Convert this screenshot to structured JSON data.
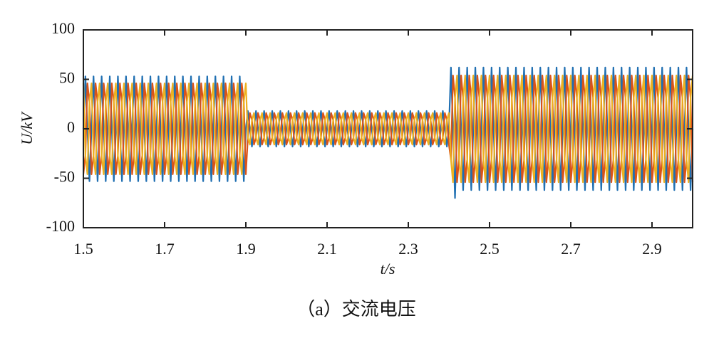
{
  "chart_data": {
    "type": "line",
    "ylabel": "U/kV",
    "xlabel": "t/s",
    "caption": "（a）交流电压",
    "xlim": [
      1.5,
      3.0
    ],
    "xticks": [
      1.5,
      1.7,
      1.9,
      2.1,
      2.3,
      2.5,
      2.7,
      2.9
    ],
    "ylim": [
      -100,
      100
    ],
    "yticks": [
      -100,
      -50,
      0,
      50,
      100
    ],
    "x": [
      1.5,
      1.505,
      1.51,
      1.515,
      1.52,
      1.525,
      1.53,
      1.535,
      1.54,
      1.545,
      1.55,
      1.555,
      1.56,
      1.565,
      1.57,
      1.575,
      1.58,
      1.585,
      1.59,
      1.595,
      1.6,
      1.605,
      1.61,
      1.615,
      1.62,
      1.625,
      1.63,
      1.635,
      1.64,
      1.645,
      1.65,
      1.655,
      1.66,
      1.665,
      1.67,
      1.675,
      1.68,
      1.685,
      1.69,
      1.695,
      1.7,
      1.705,
      1.71,
      1.715,
      1.72,
      1.725,
      1.73,
      1.735,
      1.74,
      1.745,
      1.75,
      1.755,
      1.76,
      1.765,
      1.77,
      1.775,
      1.78,
      1.785,
      1.79,
      1.795,
      1.8,
      1.805,
      1.81,
      1.815,
      1.82,
      1.825,
      1.83,
      1.835,
      1.84,
      1.845,
      1.85,
      1.855,
      1.86,
      1.865,
      1.87,
      1.875,
      1.88,
      1.885,
      1.89,
      1.895,
      1.9,
      1.905,
      1.91,
      1.915,
      1.92,
      1.925,
      1.93,
      1.935,
      1.94,
      1.945,
      1.95,
      1.955,
      1.96,
      1.965,
      1.97,
      1.975,
      1.98,
      1.985,
      1.99,
      1.995,
      2.0,
      2.005,
      2.01,
      2.015,
      2.02,
      2.025,
      2.03,
      2.035,
      2.04,
      2.045,
      2.05,
      2.055,
      2.06,
      2.065,
      2.07,
      2.075,
      2.08,
      2.085,
      2.09,
      2.095,
      2.1,
      2.105,
      2.11,
      2.115,
      2.12,
      2.125,
      2.13,
      2.135,
      2.14,
      2.145,
      2.15,
      2.155,
      2.16,
      2.165,
      2.17,
      2.175,
      2.18,
      2.185,
      2.19,
      2.195,
      2.2,
      2.205,
      2.21,
      2.215,
      2.22,
      2.225,
      2.23,
      2.235,
      2.24,
      2.245,
      2.25,
      2.255,
      2.26,
      2.265,
      2.27,
      2.275,
      2.28,
      2.285,
      2.29,
      2.295,
      2.3,
      2.305,
      2.31,
      2.315,
      2.32,
      2.325,
      2.33,
      2.335,
      2.34,
      2.345,
      2.35,
      2.355,
      2.36,
      2.365,
      2.37,
      2.375,
      2.38,
      2.385,
      2.39,
      2.395,
      2.4,
      2.405,
      2.41,
      2.415,
      2.42,
      2.425,
      2.43,
      2.435,
      2.44,
      2.445,
      2.45,
      2.455,
      2.46,
      2.465,
      2.47,
      2.475,
      2.48,
      2.485,
      2.49,
      2.495,
      2.5,
      2.505,
      2.51,
      2.515,
      2.52,
      2.525,
      2.53,
      2.535,
      2.54,
      2.545,
      2.55,
      2.555,
      2.56,
      2.565,
      2.57,
      2.575,
      2.58,
      2.585,
      2.59,
      2.595,
      2.6,
      2.605,
      2.61,
      2.615,
      2.62,
      2.625,
      2.63,
      2.635,
      2.64,
      2.645,
      2.65,
      2.655,
      2.66,
      2.665,
      2.67,
      2.675,
      2.68,
      2.685,
      2.69,
      2.695,
      2.7,
      2.705,
      2.71,
      2.715,
      2.72,
      2.725,
      2.73,
      2.735,
      2.74,
      2.745,
      2.75,
      2.755,
      2.76,
      2.765,
      2.77,
      2.775,
      2.78,
      2.785,
      2.79,
      2.795,
      2.8,
      2.805,
      2.81,
      2.815,
      2.82,
      2.825,
      2.83,
      2.835,
      2.84,
      2.845,
      2.85,
      2.855,
      2.86,
      2.865,
      2.87,
      2.875,
      2.88,
      2.885,
      2.89,
      2.895,
      2.9,
      2.905,
      2.91,
      2.915,
      2.92,
      2.925,
      2.93,
      2.935,
      2.94,
      2.945,
      2.95,
      2.955,
      2.96,
      2.965,
      2.97,
      2.975,
      2.98,
      2.985,
      2.99,
      2.995,
      3.0
    ],
    "series": [
      {
        "color": "#1f6fb2",
        "values": [
          0,
          53,
          0,
          -53,
          0,
          53,
          0,
          -53,
          0,
          53,
          0,
          -53,
          0,
          53,
          0,
          -53,
          0,
          53,
          0,
          -53,
          0,
          53,
          0,
          -53,
          0,
          53,
          0,
          -53,
          0,
          53,
          0,
          -53,
          0,
          53,
          0,
          -53,
          0,
          53,
          0,
          -53,
          0,
          53,
          0,
          -53,
          0,
          53,
          0,
          -53,
          0,
          53,
          0,
          -53,
          0,
          53,
          0,
          -53,
          0,
          53,
          0,
          -53,
          0,
          53,
          0,
          -53,
          0,
          53,
          0,
          -53,
          0,
          53,
          0,
          -53,
          0,
          53,
          0,
          -53,
          0,
          53,
          0,
          -53,
          0,
          18,
          0,
          -18,
          0,
          18,
          0,
          -18,
          0,
          18,
          0,
          -18,
          0,
          18,
          0,
          -18,
          0,
          18,
          0,
          -18,
          0,
          18,
          0,
          -18,
          0,
          18,
          0,
          -18,
          0,
          18,
          0,
          -18,
          0,
          18,
          0,
          -18,
          0,
          18,
          0,
          -18,
          0,
          18,
          0,
          -18,
          0,
          18,
          0,
          -18,
          0,
          18,
          0,
          -18,
          0,
          18,
          0,
          -18,
          0,
          18,
          0,
          -18,
          0,
          18,
          0,
          -18,
          0,
          18,
          0,
          -18,
          0,
          18,
          0,
          -18,
          0,
          18,
          0,
          -18,
          0,
          18,
          0,
          -18,
          0,
          18,
          0,
          -18,
          0,
          18,
          0,
          -18,
          0,
          18,
          0,
          -18,
          0,
          18,
          0,
          -18,
          0,
          18,
          0,
          -18,
          0,
          62,
          0,
          -70,
          0,
          62,
          0,
          -62,
          0,
          62,
          0,
          -62,
          0,
          62,
          0,
          -62,
          0,
          62,
          0,
          -62,
          0,
          62,
          0,
          -62,
          0,
          62,
          0,
          -62,
          0,
          62,
          0,
          -62,
          0,
          62,
          0,
          -62,
          0,
          62,
          0,
          -62,
          0,
          62,
          0,
          -62,
          0,
          62,
          0,
          -62,
          0,
          62,
          0,
          -62,
          0,
          62,
          0,
          -62,
          0,
          62,
          0,
          -62,
          0,
          62,
          0,
          -62,
          0,
          62,
          0,
          -62,
          0,
          62,
          0,
          -62,
          0,
          62,
          0,
          -62,
          0,
          62,
          0,
          -62,
          0,
          62,
          0,
          -62,
          0,
          62,
          0,
          -62,
          0,
          62,
          0,
          -62,
          0,
          62,
          0,
          -62,
          0,
          62,
          0,
          -62,
          0,
          62,
          0,
          -62,
          0,
          62,
          0,
          -62,
          0,
          62,
          0,
          -62,
          0,
          62,
          0,
          -62,
          0,
          62,
          0,
          -62,
          0
        ]
      },
      {
        "color": "#d95319",
        "values": [
          -46,
          -27,
          46,
          27,
          -46,
          -27,
          46,
          27,
          -46,
          -27,
          46,
          27,
          -46,
          -27,
          46,
          27,
          -46,
          -27,
          46,
          27,
          -46,
          -27,
          46,
          27,
          -46,
          -27,
          46,
          27,
          -46,
          -27,
          46,
          27,
          -46,
          -27,
          46,
          27,
          -46,
          -27,
          46,
          27,
          -46,
          -27,
          46,
          27,
          -46,
          -27,
          46,
          27,
          -46,
          -27,
          46,
          27,
          -46,
          -27,
          46,
          27,
          -46,
          -27,
          46,
          27,
          -46,
          -27,
          46,
          27,
          -46,
          -27,
          46,
          27,
          -46,
          -27,
          46,
          27,
          -46,
          -27,
          46,
          27,
          -46,
          -27,
          46,
          27,
          -46,
          -9,
          16,
          9,
          -16,
          -9,
          16,
          9,
          -16,
          -9,
          16,
          9,
          -16,
          -9,
          16,
          9,
          -16,
          -9,
          16,
          9,
          -16,
          -9,
          16,
          9,
          -16,
          -9,
          16,
          9,
          -16,
          -9,
          16,
          9,
          -16,
          -9,
          16,
          9,
          -16,
          -9,
          16,
          9,
          -16,
          -9,
          16,
          9,
          -16,
          -9,
          16,
          9,
          -16,
          -9,
          16,
          9,
          -16,
          -9,
          16,
          9,
          -16,
          -9,
          16,
          9,
          -16,
          -9,
          16,
          9,
          -16,
          -9,
          16,
          9,
          -16,
          -9,
          16,
          9,
          -16,
          -9,
          16,
          9,
          -16,
          -9,
          16,
          9,
          -16,
          -9,
          16,
          9,
          -16,
          -9,
          16,
          9,
          -16,
          -9,
          16,
          9,
          -16,
          -9,
          16,
          9,
          -16,
          -9,
          16,
          9,
          -16,
          -31,
          54,
          31,
          -54,
          -31,
          54,
          31,
          -54,
          -31,
          54,
          31,
          -54,
          -31,
          54,
          31,
          -54,
          -31,
          54,
          31,
          -54,
          -31,
          54,
          31,
          -54,
          -31,
          54,
          31,
          -54,
          -31,
          54,
          31,
          -54,
          -31,
          54,
          31,
          -54,
          -31,
          54,
          31,
          -54,
          -31,
          54,
          31,
          -54,
          -31,
          54,
          31,
          -54,
          -31,
          54,
          31,
          -54,
          -31,
          54,
          31,
          -54,
          -31,
          54,
          31,
          -54,
          -31,
          54,
          31,
          -54,
          -31,
          54,
          31,
          -54,
          -31,
          54,
          31,
          -54,
          -31,
          54,
          31,
          -54,
          -31,
          54,
          31,
          -54,
          -31,
          54,
          31,
          -54,
          -31,
          54,
          31,
          -54,
          -31,
          54,
          31,
          -54,
          -31,
          54,
          31,
          -54,
          -31,
          54,
          31,
          -54,
          -31,
          54,
          31,
          -54,
          -31,
          54,
          31,
          -54,
          -31,
          54,
          31,
          -54,
          -31,
          54,
          31,
          -54,
          -31,
          54,
          31,
          -54
        ]
      },
      {
        "color": "#edb120",
        "values": [
          46,
          -27,
          -46,
          27,
          46,
          -27,
          -46,
          27,
          46,
          -27,
          -46,
          27,
          46,
          -27,
          -46,
          27,
          46,
          -27,
          -46,
          27,
          46,
          -27,
          -46,
          27,
          46,
          -27,
          -46,
          27,
          46,
          -27,
          -46,
          27,
          46,
          -27,
          -46,
          27,
          46,
          -27,
          -46,
          27,
          46,
          -27,
          -46,
          27,
          46,
          -27,
          -46,
          27,
          46,
          -27,
          -46,
          27,
          46,
          -27,
          -46,
          27,
          46,
          -27,
          -46,
          27,
          46,
          -27,
          -46,
          27,
          46,
          -27,
          -46,
          27,
          46,
          -27,
          -46,
          27,
          46,
          -27,
          -46,
          27,
          46,
          -27,
          -46,
          27,
          46,
          -9,
          -16,
          9,
          16,
          -9,
          -16,
          9,
          16,
          -9,
          -16,
          9,
          16,
          -9,
          -16,
          9,
          16,
          -9,
          -16,
          9,
          16,
          -9,
          -16,
          9,
          16,
          -9,
          -16,
          9,
          16,
          -9,
          -16,
          9,
          16,
          -9,
          -16,
          9,
          16,
          -9,
          -16,
          9,
          16,
          -9,
          -16,
          9,
          16,
          -9,
          -16,
          9,
          16,
          -9,
          -16,
          9,
          16,
          -9,
          -16,
          9,
          16,
          -9,
          -16,
          9,
          16,
          -9,
          -16,
          9,
          16,
          -9,
          -16,
          9,
          16,
          -9,
          -16,
          9,
          16,
          -9,
          -16,
          9,
          16,
          -9,
          -16,
          9,
          16,
          -9,
          -16,
          9,
          16,
          -9,
          -16,
          9,
          16,
          -9,
          -16,
          9,
          16,
          -9,
          -16,
          9,
          16,
          -9,
          -16,
          9,
          16,
          -31,
          -54,
          31,
          54,
          -31,
          -54,
          31,
          54,
          -31,
          -54,
          31,
          54,
          -31,
          -54,
          31,
          54,
          -31,
          -54,
          31,
          54,
          -31,
          -54,
          31,
          54,
          -31,
          -54,
          31,
          54,
          -31,
          -54,
          31,
          54,
          -31,
          -54,
          31,
          54,
          -31,
          -54,
          31,
          54,
          -31,
          -54,
          31,
          54,
          -31,
          -54,
          31,
          54,
          -31,
          -54,
          31,
          54,
          -31,
          -54,
          31,
          54,
          -31,
          -54,
          31,
          54,
          -31,
          -54,
          31,
          54,
          -31,
          -54,
          31,
          54,
          -31,
          -54,
          31,
          54,
          -31,
          -54,
          31,
          54,
          -31,
          -54,
          31,
          54,
          -31,
          -54,
          31,
          54,
          -31,
          -54,
          31,
          54,
          -31,
          -54,
          31,
          54,
          -31,
          -54,
          31,
          54,
          -31,
          -54,
          31,
          54,
          -31,
          -54,
          31,
          54,
          -31,
          -54,
          31,
          54,
          -31,
          -54,
          31,
          54,
          -31,
          -54,
          31,
          54,
          -31,
          -54,
          31,
          54
        ]
      }
    ]
  }
}
